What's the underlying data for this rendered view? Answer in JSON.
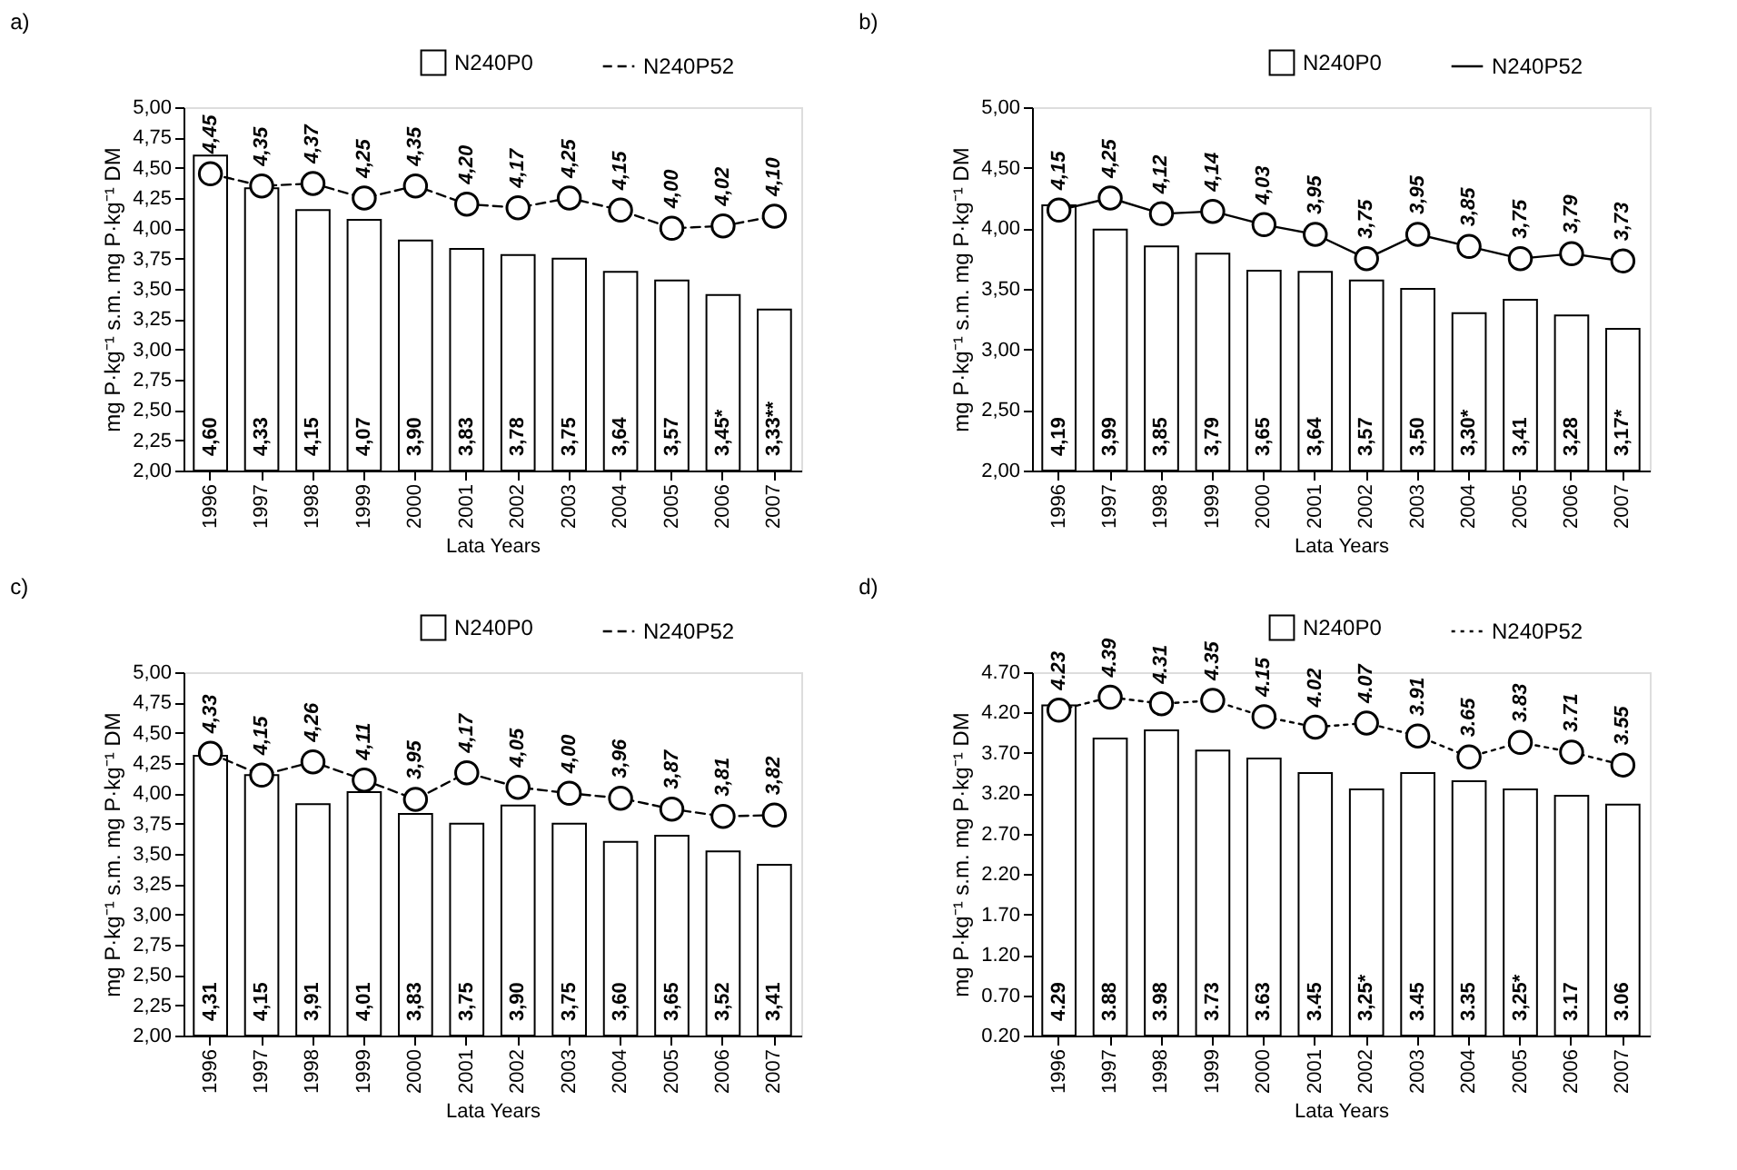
{
  "chart_data": [
    {
      "type": "bar",
      "title": "a)",
      "xlabel": "Lata  Years",
      "ylabel": "mg P·kg⁻¹ s.m.   mg P·kg⁻¹ DM",
      "categories": [
        "1996",
        "1997",
        "1998",
        "1999",
        "2000",
        "2001",
        "2002",
        "2003",
        "2004",
        "2005",
        "2006",
        "2007"
      ],
      "series": [
        {
          "name": "N240P0",
          "type": "bar",
          "color": "#ffffff",
          "values": [
            4.6,
            4.33,
            4.15,
            4.07,
            3.9,
            3.83,
            3.78,
            3.75,
            3.64,
            3.57,
            3.45,
            3.33
          ],
          "value_labels": [
            "4,60",
            "4,33",
            "4,15",
            "4,07",
            "3,90",
            "3,83",
            "3,78",
            "3,75",
            "3,64",
            "3,57",
            "3,45*",
            "3,33**"
          ]
        },
        {
          "name": "N240P52",
          "type": "line",
          "color": "#000000",
          "marker": "circle",
          "line_style": "dashed",
          "values": [
            4.45,
            4.35,
            4.37,
            4.25,
            4.35,
            4.2,
            4.17,
            4.25,
            4.15,
            4.0,
            4.02,
            4.1
          ],
          "value_labels": [
            "4,45",
            "4,35",
            "4,37",
            "4,25",
            "4,35",
            "4,20",
            "4,17",
            "4,25",
            "4,15",
            "4,00",
            "4,02",
            "4,10"
          ]
        }
      ],
      "ylim": [
        2.0,
        5.0
      ],
      "yticks": [
        {
          "value": 2.0,
          "label": "2,00"
        },
        {
          "value": 2.25,
          "label": "2,25"
        },
        {
          "value": 2.5,
          "label": "2,50"
        },
        {
          "value": 2.75,
          "label": "2,75"
        },
        {
          "value": 3.0,
          "label": "3,00"
        },
        {
          "value": 3.25,
          "label": "3,25"
        },
        {
          "value": 3.5,
          "label": "3,50"
        },
        {
          "value": 3.75,
          "label": "3,75"
        },
        {
          "value": 4.0,
          "label": "4,00"
        },
        {
          "value": 4.25,
          "label": "4,25"
        },
        {
          "value": 4.5,
          "label": "4,50"
        },
        {
          "value": 4.75,
          "label": "4,75"
        },
        {
          "value": 5.0,
          "label": "5,00"
        }
      ],
      "grid": false,
      "legend": "top right"
    },
    {
      "type": "bar",
      "title": "b)",
      "xlabel": "Lata  Years",
      "ylabel": "mg P·kg⁻¹ s.m.   mg P·kg⁻¹ DM",
      "categories": [
        "1996",
        "1997",
        "1998",
        "1999",
        "2000",
        "2001",
        "2002",
        "2003",
        "2004",
        "2005",
        "2006",
        "2007"
      ],
      "series": [
        {
          "name": "N240P0",
          "type": "bar",
          "color": "#ffffff",
          "values": [
            4.19,
            3.99,
            3.85,
            3.79,
            3.65,
            3.64,
            3.57,
            3.5,
            3.3,
            3.41,
            3.28,
            3.17
          ],
          "value_labels": [
            "4,19",
            "3,99",
            "3,85",
            "3,79",
            "3,65",
            "3,64",
            "3,57",
            "3,50",
            "3,30*",
            "3,41",
            "3,28",
            "3,17*"
          ]
        },
        {
          "name": "N240P52",
          "type": "line",
          "color": "#000000",
          "marker": "circle",
          "line_style": "solid",
          "values": [
            4.15,
            4.25,
            4.12,
            4.14,
            4.03,
            3.95,
            3.75,
            3.95,
            3.85,
            3.75,
            3.79,
            3.73
          ],
          "value_labels": [
            "4,15",
            "4,25",
            "4,12",
            "4,14",
            "4,03",
            "3,95",
            "3,75",
            "3,95",
            "3,85",
            "3,75",
            "3,79",
            "3,73"
          ]
        }
      ],
      "ylim": [
        2.0,
        5.0
      ],
      "yticks": [
        {
          "value": 2.0,
          "label": "2,00"
        },
        {
          "value": 2.5,
          "label": "2,50"
        },
        {
          "value": 3.0,
          "label": "3,00"
        },
        {
          "value": 3.5,
          "label": "3,50"
        },
        {
          "value": 4.0,
          "label": "4,00"
        },
        {
          "value": 4.5,
          "label": "4,50"
        },
        {
          "value": 5.0,
          "label": "5,00"
        }
      ],
      "grid": false,
      "legend": "top right"
    },
    {
      "type": "bar",
      "title": "c)",
      "xlabel": "Lata  Years",
      "ylabel": "mg P·kg⁻¹ s.m.   mg P·kg⁻¹ DM",
      "categories": [
        "1996",
        "1997",
        "1998",
        "1999",
        "2000",
        "2001",
        "2002",
        "2003",
        "2004",
        "2005",
        "2006",
        "2007"
      ],
      "series": [
        {
          "name": "N240P0",
          "type": "bar",
          "color": "#ffffff",
          "values": [
            4.31,
            4.15,
            3.91,
            4.01,
            3.83,
            3.75,
            3.9,
            3.75,
            3.6,
            3.65,
            3.52,
            3.41
          ],
          "value_labels": [
            "4,31",
            "4,15",
            "3,91",
            "4,01",
            "3,83",
            "3,75",
            "3,90",
            "3,75",
            "3,60",
            "3,65",
            "3,52",
            "3,41"
          ]
        },
        {
          "name": "N240P52",
          "type": "line",
          "color": "#000000",
          "marker": "circle",
          "line_style": "dashed",
          "values": [
            4.33,
            4.15,
            4.26,
            4.11,
            3.95,
            4.17,
            4.05,
            4.0,
            3.96,
            3.87,
            3.81,
            3.82
          ],
          "value_labels": [
            "4,33",
            "4,15",
            "4,26",
            "4,11",
            "3,95",
            "4,17",
            "4,05",
            "4,00",
            "3,96",
            "3,87",
            "3,81",
            "3,82"
          ]
        }
      ],
      "ylim": [
        2.0,
        5.0
      ],
      "yticks": [
        {
          "value": 2.0,
          "label": "2,00"
        },
        {
          "value": 2.25,
          "label": "2,25"
        },
        {
          "value": 2.5,
          "label": "2,50"
        },
        {
          "value": 2.75,
          "label": "2,75"
        },
        {
          "value": 3.0,
          "label": "3,00"
        },
        {
          "value": 3.25,
          "label": "3,25"
        },
        {
          "value": 3.5,
          "label": "3,50"
        },
        {
          "value": 3.75,
          "label": "3,75"
        },
        {
          "value": 4.0,
          "label": "4,00"
        },
        {
          "value": 4.25,
          "label": "4,25"
        },
        {
          "value": 4.5,
          "label": "4,50"
        },
        {
          "value": 4.75,
          "label": "4,75"
        },
        {
          "value": 5.0,
          "label": "5,00"
        }
      ],
      "grid": false,
      "legend": "top right"
    },
    {
      "type": "bar",
      "title": "d)",
      "xlabel": "Lata  Years",
      "ylabel": "mg P·kg⁻¹ s.m.   mg P·kg⁻¹ DM",
      "categories": [
        "1996",
        "1997",
        "1998",
        "1999",
        "2000",
        "2001",
        "2002",
        "2003",
        "2004",
        "2005",
        "2006",
        "2007"
      ],
      "series": [
        {
          "name": "N240P0",
          "type": "bar",
          "color": "#ffffff",
          "values": [
            4.29,
            3.88,
            3.98,
            3.73,
            3.63,
            3.45,
            3.25,
            3.45,
            3.35,
            3.25,
            3.17,
            3.06
          ],
          "value_labels": [
            "4.29",
            "3.88",
            "3.98",
            "3.73",
            "3.63",
            "3.45",
            "3,25*",
            "3.45",
            "3.35",
            "3,25*",
            "3.17",
            "3.06"
          ]
        },
        {
          "name": "N240P52",
          "type": "line",
          "color": "#000000",
          "marker": "circle",
          "line_style": "dotted",
          "values": [
            4.23,
            4.39,
            4.31,
            4.35,
            4.15,
            4.02,
            4.07,
            3.91,
            3.65,
            3.83,
            3.71,
            3.55
          ],
          "value_labels": [
            "4.23",
            "4.39",
            "4.31",
            "4.35",
            "4.15",
            "4.02",
            "4.07",
            "3.91",
            "3.65",
            "3.83",
            "3.71",
            "3.55"
          ]
        }
      ],
      "ylim": [
        0.2,
        4.7
      ],
      "yticks": [
        {
          "value": 0.2,
          "label": "0.20"
        },
        {
          "value": 0.7,
          "label": "0.70"
        },
        {
          "value": 1.2,
          "label": "1.20"
        },
        {
          "value": 1.7,
          "label": "1.70"
        },
        {
          "value": 2.2,
          "label": "2.20"
        },
        {
          "value": 2.7,
          "label": "2.70"
        },
        {
          "value": 3.2,
          "label": "3.20"
        },
        {
          "value": 3.7,
          "label": "3.70"
        },
        {
          "value": 4.2,
          "label": "4.20"
        },
        {
          "value": 4.7,
          "label": "4.70"
        }
      ],
      "grid": false,
      "legend": "top right"
    }
  ]
}
